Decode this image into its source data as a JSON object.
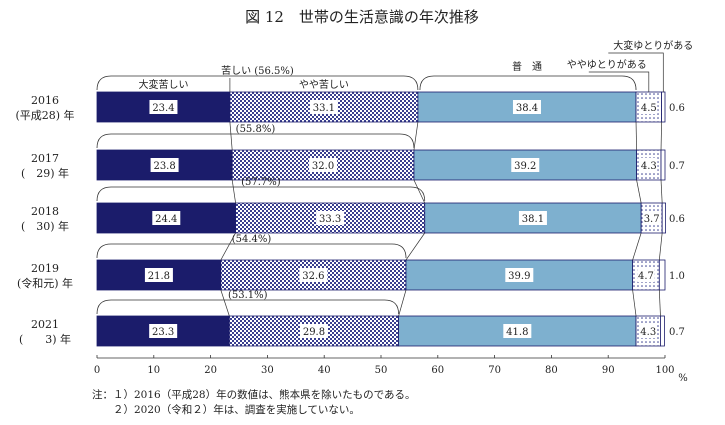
{
  "chart_data": {
    "type": "bar",
    "orientation": "horizontal",
    "stacked": true,
    "title": "図 12　世帯の生活意識の年次推移",
    "unit": "%",
    "xlim": [
      0,
      100
    ],
    "x_ticks": [
      "0",
      "10",
      "20",
      "30",
      "40",
      "50",
      "60",
      "70",
      "80",
      "90",
      "100"
    ],
    "categories": [
      {
        "year": "2016",
        "era": "(平成28) 年"
      },
      {
        "year": "2017",
        "era": "(　29) 年"
      },
      {
        "year": "2018",
        "era": "(　30) 年"
      },
      {
        "year": "2019",
        "era": "(令和元) 年"
      },
      {
        "year": "2021",
        "era": "(　　3) 年"
      }
    ],
    "series": [
      {
        "name": "大変苦しい",
        "color": "#1b1c6b",
        "pattern": "solid",
        "values": [
          23.4,
          23.8,
          24.4,
          21.8,
          23.3
        ],
        "labels": [
          "23.4",
          "23.8",
          "24.4",
          "21.8",
          "23.3"
        ]
      },
      {
        "name": "やや苦しい",
        "color": "#3a3f8f",
        "pattern": "checker",
        "values": [
          33.1,
          32.0,
          33.3,
          32.6,
          29.8
        ],
        "labels": [
          "33.1",
          "32.0",
          "33.3",
          "32.6",
          "29.8"
        ]
      },
      {
        "name": "普　通",
        "color": "#7eb0cf",
        "pattern": "solid",
        "values": [
          38.4,
          39.2,
          38.1,
          39.9,
          41.8
        ],
        "labels": [
          "38.4",
          "39.2",
          "38.1",
          "39.9",
          "41.8"
        ]
      },
      {
        "name": "ややゆとりがある",
        "color": "#3a3f8f",
        "pattern": "dots",
        "values": [
          4.5,
          4.3,
          3.7,
          4.7,
          4.3
        ],
        "labels": [
          "4.5",
          "4.3",
          "3.7",
          "4.7",
          "4.3"
        ]
      },
      {
        "name": "大変ゆとりがある",
        "color": "#ffffff",
        "pattern": "solid",
        "values": [
          0.6,
          0.7,
          0.6,
          1.0,
          0.7
        ],
        "labels": [
          "0.6",
          "0.7",
          "0.6",
          "1.0",
          "0.7"
        ]
      }
    ],
    "kurushii_totals": [
      "苦しい (56.5%)",
      "(55.8%)",
      "(57.7%)",
      "(54.4%)",
      "(53.1%)"
    ],
    "grid": false
  },
  "notes": [
    "注：１）2016（平成28）年の数値は、熊本県を除いたものである。",
    "　　２）2020（令和２）年は、調査を実施していない。"
  ]
}
